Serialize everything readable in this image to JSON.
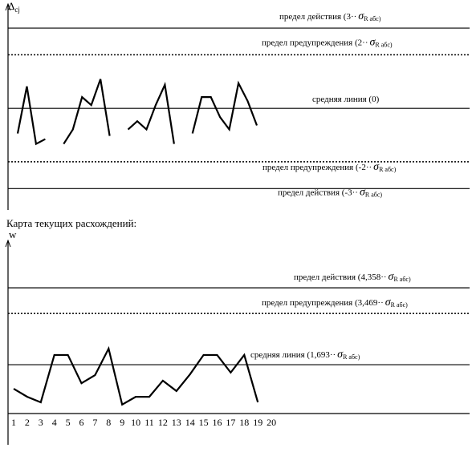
{
  "heading": "Карта текущих расхождений:",
  "chart_data": [
    {
      "type": "line",
      "y_label": "Δ",
      "y_label_sub": "cj",
      "ylim": [
        -3.8,
        3.9
      ],
      "values": [
        -0.94,
        0.82,
        -1.33,
        -1.15,
        null,
        -1.33,
        -0.79,
        0.42,
        0.12,
        1.09,
        -1.03,
        null,
        -0.79,
        -0.48,
        -0.79,
        0.12,
        0.88,
        -1.33,
        null,
        -0.94,
        0.42,
        0.42,
        -0.33,
        -0.79,
        0.94,
        0.27,
        -0.64
      ],
      "reference_lines": [
        {
          "value": 3,
          "style": "solid",
          "text": "предел действия  (3··",
          "sigma": "σ",
          "sub": "R абс)"
        },
        {
          "value": 2,
          "style": "dotted",
          "text": "предел предупреждения (2··",
          "sigma": "σ",
          "sub": "R абс)"
        },
        {
          "value": 0,
          "style": "solid",
          "text": "средняя линия (0)"
        },
        {
          "value": -2,
          "style": "dotted",
          "text": "предел предупреждения (-2··",
          "sigma": "σ",
          "sub": "R абс)"
        },
        {
          "value": -3,
          "style": "solid",
          "text": "предел действия  (-3··",
          "sigma": "σ",
          "sub": "R абс)"
        }
      ]
    },
    {
      "type": "line",
      "y_label": "w",
      "ylim": [
        0,
        6
      ],
      "categories": [
        "1",
        "2",
        "3",
        "4",
        "5",
        "6",
        "7",
        "8",
        "9",
        "10",
        "11",
        "12",
        "13",
        "14",
        "15",
        "16",
        "17",
        "18",
        "19",
        "20"
      ],
      "values": [
        0.86,
        0.58,
        0.39,
        2.03,
        2.03,
        1.05,
        1.33,
        2.25,
        0.31,
        0.58,
        0.58,
        1.14,
        0.78,
        1.36,
        2.03,
        2.03,
        1.42,
        2.03,
        0.39,
        null
      ],
      "reference_lines": [
        {
          "value": 4.358,
          "style": "solid",
          "text": "предел действия  (4,358··",
          "sigma": "σ",
          "sub": "R абс)"
        },
        {
          "value": 3.469,
          "style": "dotted",
          "text": "предел предупреждения (3,469··",
          "sigma": "σ",
          "sub": "R абс)"
        },
        {
          "value": 1.693,
          "style": "solid",
          "text": "средняя линия (1,693··",
          "sigma": "σ",
          "sub": "R абс)"
        }
      ]
    }
  ]
}
